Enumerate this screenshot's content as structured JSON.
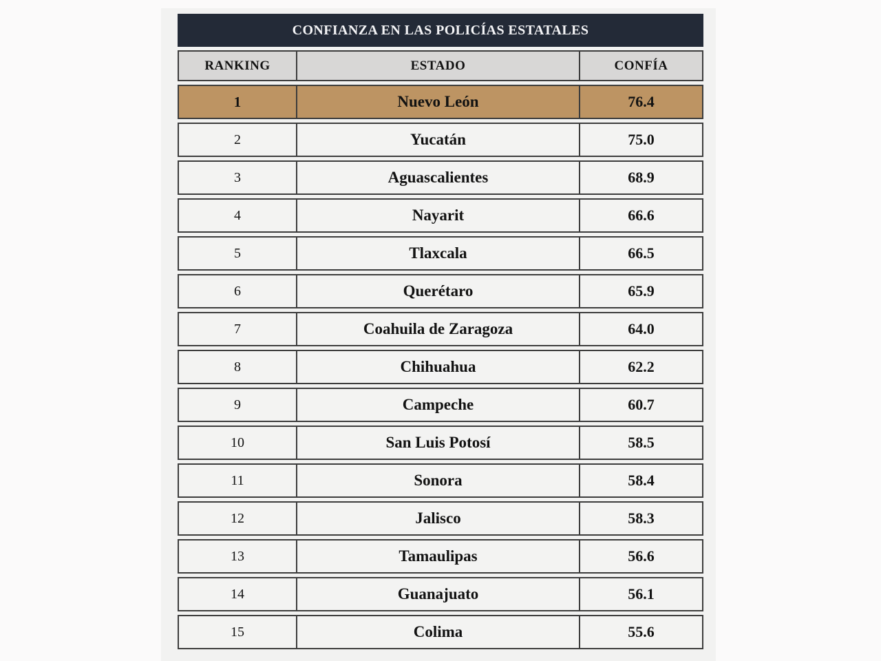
{
  "table": {
    "title": "CONFIANZA EN LAS POLICÍAS ESTATALES",
    "columns": [
      "RANKING",
      "ESTADO",
      "CONFÍA"
    ],
    "rows": [
      {
        "ranking": "1",
        "estado": "Nuevo León",
        "confia": "76.4",
        "highlight": true
      },
      {
        "ranking": "2",
        "estado": "Yucatán",
        "confia": "75.0",
        "highlight": false
      },
      {
        "ranking": "3",
        "estado": "Aguascalientes",
        "confia": "68.9",
        "highlight": false
      },
      {
        "ranking": "4",
        "estado": "Nayarit",
        "confia": "66.6",
        "highlight": false
      },
      {
        "ranking": "5",
        "estado": "Tlaxcala",
        "confia": "66.5",
        "highlight": false
      },
      {
        "ranking": "6",
        "estado": "Querétaro",
        "confia": "65.9",
        "highlight": false
      },
      {
        "ranking": "7",
        "estado": "Coahuila de Zaragoza",
        "confia": "64.0",
        "highlight": false
      },
      {
        "ranking": "8",
        "estado": "Chihuahua",
        "confia": "62.2",
        "highlight": false
      },
      {
        "ranking": "9",
        "estado": "Campeche",
        "confia": "60.7",
        "highlight": false
      },
      {
        "ranking": "10",
        "estado": "San Luis Potosí",
        "confia": "58.5",
        "highlight": false
      },
      {
        "ranking": "11",
        "estado": "Sonora",
        "confia": "58.4",
        "highlight": false
      },
      {
        "ranking": "12",
        "estado": "Jalisco",
        "confia": "58.3",
        "highlight": false
      },
      {
        "ranking": "13",
        "estado": "Tamaulipas",
        "confia": "56.6",
        "highlight": false
      },
      {
        "ranking": "14",
        "estado": "Guanajuato",
        "confia": "56.1",
        "highlight": false
      },
      {
        "ranking": "15",
        "estado": "Colima",
        "confia": "55.6",
        "highlight": false
      }
    ]
  },
  "colors": {
    "title_bar_bg": "#232a37",
    "title_text": "#f4f4f6",
    "column_header_bg": "#d8d7d6",
    "row_bg": "#f3f3f2",
    "highlight_row_bg": "#bd9463",
    "border": "#3c3c3c",
    "figure_bg": "#f2f2f1",
    "page_bg": "#fbfafa",
    "logo_gold": "#c9a43e"
  },
  "chart_data": {
    "type": "table",
    "title": "CONFIANZA EN LAS POLICÍAS ESTATALES",
    "columns": [
      "RANKING",
      "ESTADO",
      "CONFÍA"
    ],
    "categories": [
      "Nuevo León",
      "Yucatán",
      "Aguascalientes",
      "Nayarit",
      "Tlaxcala",
      "Querétaro",
      "Coahuila de Zaragoza",
      "Chihuahua",
      "Campeche",
      "San Luis Potosí",
      "Sonora",
      "Jalisco",
      "Tamaulipas",
      "Guanajuato",
      "Colima"
    ],
    "rankings": [
      1,
      2,
      3,
      4,
      5,
      6,
      7,
      8,
      9,
      10,
      11,
      12,
      13,
      14,
      15
    ],
    "values": [
      76.4,
      75.0,
      68.9,
      66.6,
      66.5,
      65.9,
      64.0,
      62.2,
      60.7,
      58.5,
      58.4,
      58.3,
      56.6,
      56.1,
      55.6
    ],
    "highlighted_row": "Nuevo León",
    "legend_position": "none",
    "grid": "on"
  }
}
